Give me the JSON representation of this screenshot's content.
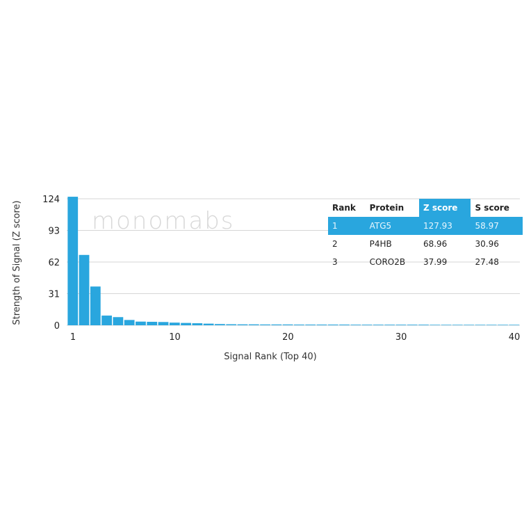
{
  "chart_data": {
    "type": "bar",
    "xlabel": "Signal Rank (Top 40)",
    "ylabel": "Strength of Signal (Z score)",
    "yticks": [
      0,
      31,
      62,
      93,
      124
    ],
    "xticks": [
      1,
      10,
      20,
      30,
      40
    ],
    "ylim": [
      0,
      124
    ],
    "xlim": [
      1,
      40
    ],
    "grid": true,
    "bar_color": "#29a6de",
    "x": [
      1,
      2,
      3,
      4,
      5,
      6,
      7,
      8,
      9,
      10,
      11,
      12,
      13,
      14,
      15,
      16,
      17,
      18,
      19,
      20,
      21,
      22,
      23,
      24,
      25,
      26,
      27,
      28,
      29,
      30,
      31,
      32,
      33,
      34,
      35,
      36,
      37,
      38,
      39,
      40
    ],
    "values": [
      127.93,
      68.96,
      37.99,
      9.5,
      8,
      5.2,
      3.6,
      3.4,
      3.2,
      2.6,
      2.3,
      2.0,
      1.6,
      1.2,
      1.0,
      0.9,
      0.9,
      0.8,
      0.8,
      0.8,
      0.7,
      0.7,
      0.7,
      0.7,
      0.7,
      0.6,
      0.6,
      0.6,
      0.6,
      0.6,
      0.6,
      0.6,
      0.5,
      0.5,
      0.5,
      0.5,
      0.5,
      0.5,
      0.5,
      0.5
    ]
  },
  "watermark": "monomabs",
  "table": {
    "headers": [
      "Rank",
      "Protein",
      "Z score",
      "S score"
    ],
    "highlight_color": "#29a6de",
    "rows": [
      [
        "1",
        "ATG5",
        "127.93",
        "58.97"
      ],
      [
        "2",
        "P4HB",
        "68.96",
        "30.96"
      ],
      [
        "3",
        "CORO2B",
        "37.99",
        "27.48"
      ]
    ]
  }
}
